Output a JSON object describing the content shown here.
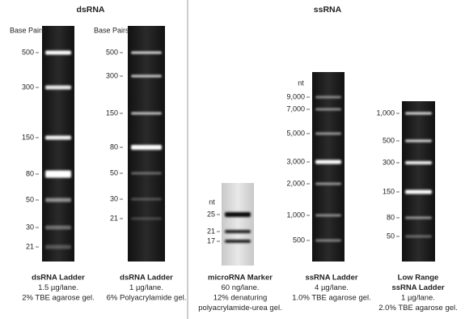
{
  "sections": [
    {
      "title": "dsRNA"
    },
    {
      "title": "ssRNA"
    }
  ],
  "gels": [
    {
      "axis_label": "Base Pairs",
      "markers": [
        "500",
        "300",
        "150",
        "80",
        "50",
        "30",
        "21"
      ],
      "name": [
        "dsRNA Ladder"
      ],
      "details": [
        "1.5 µg/lane.",
        "2% TBE agarose gel."
      ]
    },
    {
      "axis_label": "Base Pairs",
      "markers": [
        "500",
        "300",
        "150",
        "80",
        "50",
        "30",
        "21"
      ],
      "name": [
        "dsRNA Ladder"
      ],
      "details": [
        "1 µg/lane.",
        "6% Polyacrylamide gel."
      ]
    },
    {
      "axis_label": "nt",
      "markers": [
        "25",
        "21",
        "17"
      ],
      "name": [
        "microRNA Marker"
      ],
      "details": [
        "60 ng/lane.",
        "12% denaturing",
        "polyacrylamide-urea gel."
      ]
    },
    {
      "axis_label": "nt",
      "markers": [
        "9,000",
        "7,000",
        "5,000",
        "3,000",
        "2,000",
        "1,000",
        "500"
      ],
      "name": [
        "ssRNA Ladder"
      ],
      "details": [
        "4 µg/lane.",
        "1.0% TBE agarose gel."
      ]
    },
    {
      "markers": [
        "1,000",
        "500",
        "300",
        "150",
        "80",
        "50"
      ],
      "name": [
        "Low Range",
        "ssRNA Ladder"
      ],
      "details": [
        "1 µg/lane.",
        "2.0% TBE agarose gel."
      ]
    }
  ]
}
